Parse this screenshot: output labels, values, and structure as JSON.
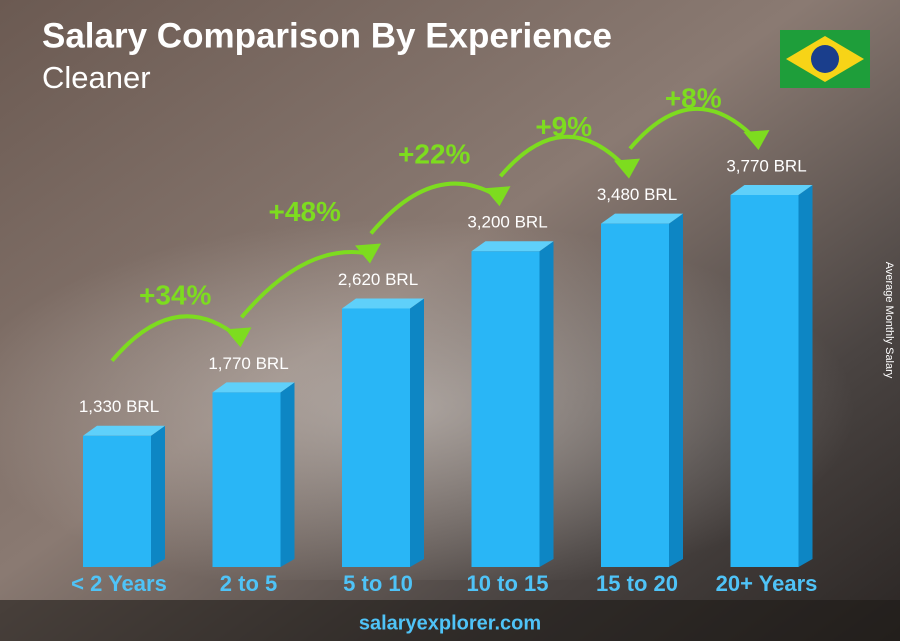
{
  "chart_data": {
    "type": "bar",
    "title": "Salary Comparison By Experience",
    "subtitle": "Cleaner",
    "axis_label": "Average Monthly Salary",
    "source": "salaryexplorer.com",
    "categories": [
      "< 2 Years",
      "2 to 5",
      "5 to 10",
      "10 to 15",
      "15 to 20",
      "20+ Years"
    ],
    "values": [
      1330,
      1770,
      2620,
      3200,
      3480,
      3770
    ],
    "value_labels": [
      "1,330 BRL",
      "1,770 BRL",
      "2,620 BRL",
      "3,200 BRL",
      "3,480 BRL",
      "3,770 BRL"
    ],
    "annotations": [
      "+34%",
      "+48%",
      "+22%",
      "+9%",
      "+8%"
    ],
    "color": "#29b6f6"
  }
}
